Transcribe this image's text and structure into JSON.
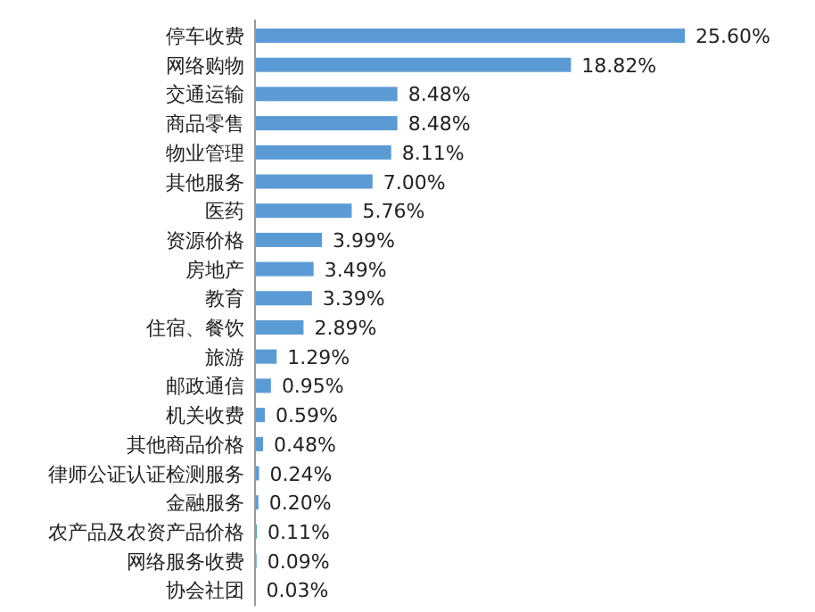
{
  "chart_data": {
    "type": "bar",
    "orientation": "horizontal",
    "color": "#5b9bd5",
    "categories": [
      "停车收费",
      "网络购物",
      "交通运输",
      "商品零售",
      "物业管理",
      "其他服务",
      "医药",
      "资源价格",
      "房地产",
      "教育",
      "住宿、餐饮",
      "旅游",
      "邮政通信",
      "机关收费",
      "其他商品价格",
      "律师公证认证检测服务",
      "金融服务",
      "农产品及农资产品价格",
      "网络服务收费",
      "协会社团"
    ],
    "values": [
      25.6,
      18.82,
      8.48,
      8.48,
      8.11,
      7.0,
      5.76,
      3.99,
      3.49,
      3.39,
      2.89,
      1.29,
      0.95,
      0.59,
      0.48,
      0.24,
      0.2,
      0.11,
      0.09,
      0.03
    ],
    "value_labels": [
      "25.60%",
      "18.82%",
      "8.48%",
      "8.48%",
      "8.11%",
      "7.00%",
      "5.76%",
      "3.99%",
      "3.49%",
      "3.39%",
      "2.89%",
      "1.29%",
      "0.95%",
      "0.59%",
      "0.48%",
      "0.24%",
      "0.20%",
      "0.11%",
      "0.09%",
      "0.03%"
    ]
  }
}
